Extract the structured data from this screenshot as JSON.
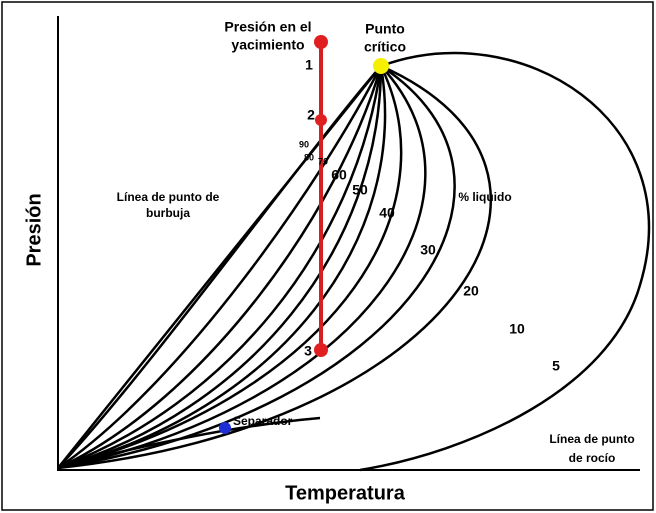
{
  "title_reservoir": [
    "Presión en el",
    "yacimiento"
  ],
  "title_critical": [
    "Punto",
    "crítico"
  ],
  "points": [
    "1",
    "2",
    "3"
  ],
  "quality_labels": [
    "90",
    "80",
    "70",
    "60",
    "50",
    "40",
    "30",
    "20",
    "10",
    "5"
  ],
  "bubble_label": [
    "Línea de punto de",
    "burbuja"
  ],
  "liquid_label": "% liquido",
  "separator_label": "Separador",
  "dew_label": [
    "Línea de punto",
    "de rocío"
  ],
  "y_axis_label": "Presión",
  "x_axis_label": "Temperatura"
}
